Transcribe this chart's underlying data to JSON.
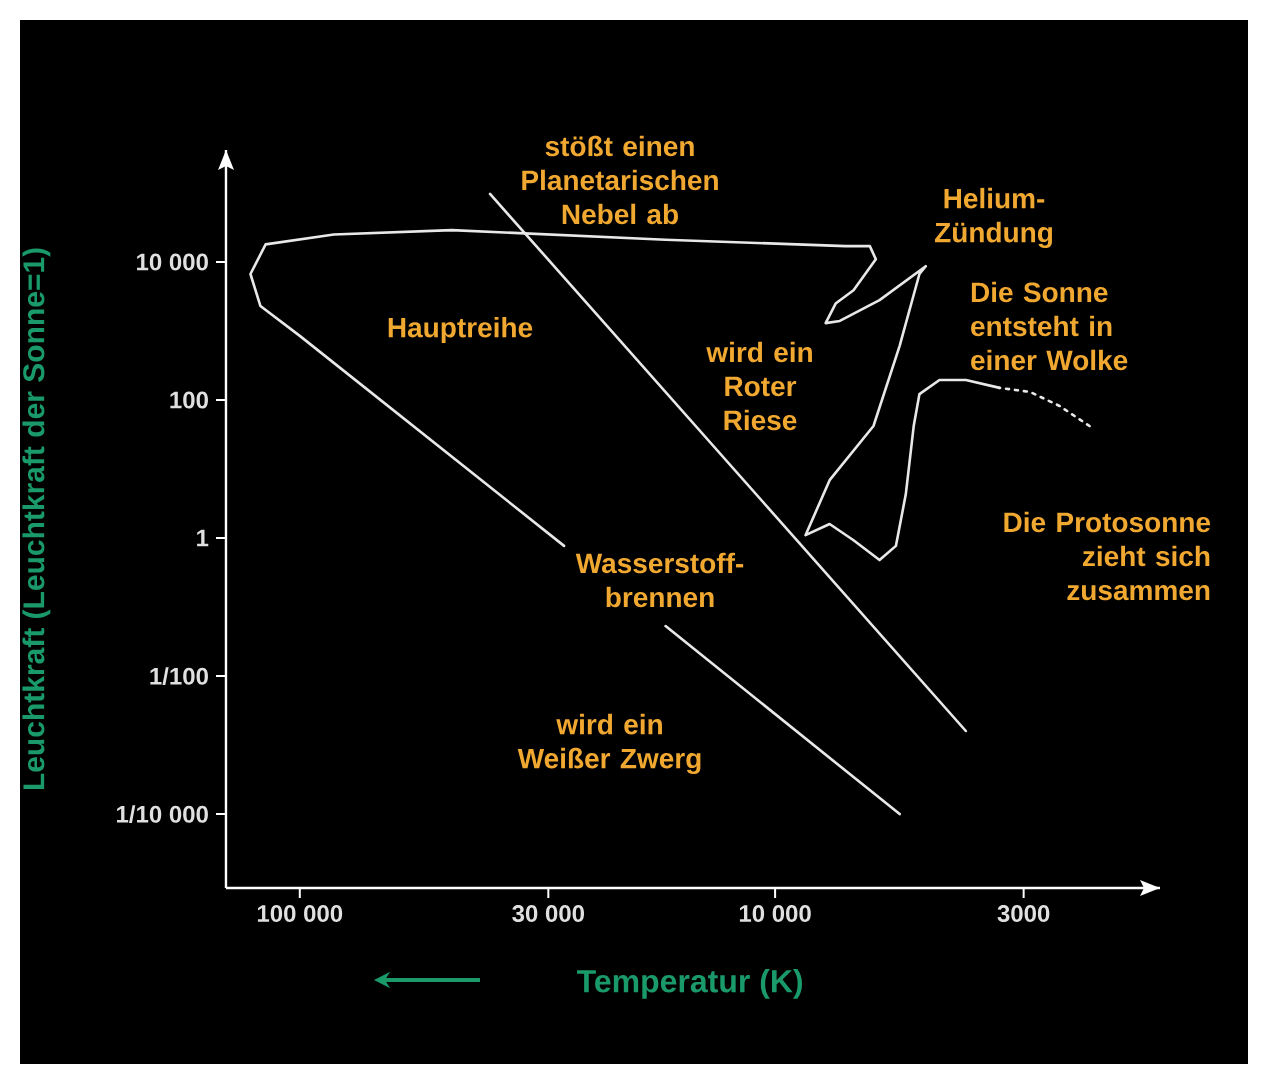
{
  "chart_data": {
    "type": "line",
    "xlabel": "Temperatur (K)",
    "ylabel": "Leuchtkraft (Leuchtkraft der Sonne=1)",
    "log": "xy",
    "xlim": [
      143000,
      1550
    ],
    "ylim": [
      8.5e-06,
      420000
    ],
    "xticks": [
      {
        "value": 100000,
        "label": "100 000"
      },
      {
        "value": 30000,
        "label": "30 000"
      },
      {
        "value": 10000,
        "label": "10 000"
      },
      3000
    ],
    "yticks": [
      {
        "value": 0.0001,
        "label": "1/10 000"
      },
      {
        "value": 0.01,
        "label": "1/100"
      },
      1,
      100,
      {
        "value": 10000,
        "label": "10 000"
      }
    ],
    "grid": false,
    "series": [
      {
        "color": "#e8e8e8",
        "line_style": "solid",
        "x": [
          39800,
          3970
        ],
        "values": [
          97000,
          0.0016
        ]
      },
      {
        "color": "#e8e8e8",
        "line_style": "dotted",
        "x": [
          2180,
          2520,
          2910,
          3370
        ],
        "values": [
          42,
          82,
          131,
          150
        ]
      },
      {
        "color": "#e8e8e8",
        "line_style": "solid",
        "x": [
          3370,
          3970,
          4510,
          4970,
          5110,
          5310,
          5570,
          6030,
          6840,
          7680,
          8630,
          7680,
          6210,
          5470,
          4970,
          4820,
          6030,
          7310,
          7830,
          7460,
          6840,
          6140,
          6320,
          7110,
          17000,
          47900,
          84800,
          118000,
          127000,
          121000,
          100000,
          27800,
          22000,
          17000,
          5470
        ],
        "values": [
          150,
          195,
          195,
          122,
          42,
          4.3,
          0.77,
          0.48,
          0.93,
          1.6,
          1.1,
          6.9,
          42,
          610,
          6700,
          8700,
          2800,
          1400,
          1300,
          2500,
          3900,
          11000,
          17000,
          17000,
          21000,
          29000,
          25000,
          18000,
          6700,
          2300,
          850,
          0.77,
          null,
          0.053,
          0.0001
        ]
      }
    ],
    "annotations": [
      "stößt einen Planetarischen Nebel ab",
      "Helium-Zündung",
      "Die Sonne entsteht in einer Wolke",
      "Hauptreihe",
      "wird ein Roter Riese",
      "Die Protosonne zieht sich zusammen",
      "Wasserstoff-brennen",
      "wird ein Weißer Zwerg"
    ]
  }
}
